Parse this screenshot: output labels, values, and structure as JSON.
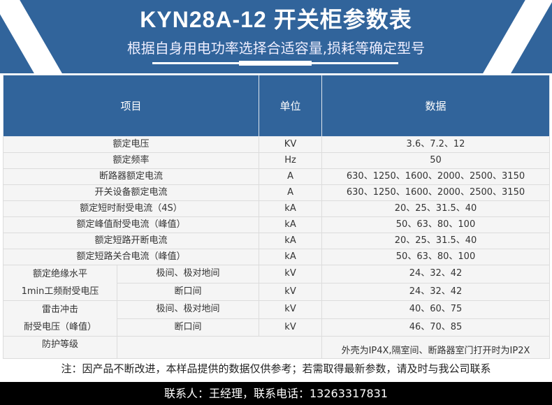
{
  "header": {
    "title": "KYN28A-12 开关柜参数表",
    "subtitle": "根据自身用电功率选择合适容量,损耗等确定型号"
  },
  "columns": [
    "项目",
    "单位",
    "数据"
  ],
  "rows": [
    {
      "item": "额定电压",
      "unit": "KV",
      "value": "3.6、7.2、12"
    },
    {
      "item": "额定频率",
      "unit": "Hz",
      "value": "50"
    },
    {
      "item": "断路器额定电流",
      "unit": "A",
      "value": "630、1250、1600、2000、2500、3150"
    },
    {
      "item": "开关设备额定电流",
      "unit": "A",
      "value": "630、1250、1600、2000、2500、3150"
    },
    {
      "item": "额定短时耐受电流（4S）",
      "unit": "kA",
      "value": "20、25、31.5、40"
    },
    {
      "item": "额定峰值耐受电流（峰值）",
      "unit": "kA",
      "value": "50、63、80、100"
    },
    {
      "item": "额定短路开断电流",
      "unit": "kA",
      "value": "20、25、31.5、40"
    },
    {
      "item": "额定短路关合电流（峰值）",
      "unit": "kA",
      "value": "50、63、80、100"
    }
  ],
  "groups": [
    {
      "label1": "额定绝缘水平",
      "label2": "1min工频耐受电压",
      "sub": [
        {
          "item": "极间、极对地间",
          "unit": "kV",
          "value": "24、32、42"
        },
        {
          "item": "断口间",
          "unit": "kV",
          "value": "24、32、42"
        }
      ]
    },
    {
      "label1": "雷击冲击",
      "label2": "耐受电压（峰值）",
      "sub": [
        {
          "item": "极间、极对地间",
          "unit": "kV",
          "value": "40、60、75"
        },
        {
          "item": "断口间",
          "unit": "kV",
          "value": "46、70、85"
        }
      ]
    }
  ],
  "protection": {
    "item": "防护等级",
    "value": "外壳为IP4X,隔室间、断路器室门打开时为IP2X"
  },
  "note": "注：因产品不断改进，本样品提供的数据仅供参考；若需取得最新参数，请及时与我公司联系",
  "footer": "联系人：王经理，联系电话：13263317831"
}
